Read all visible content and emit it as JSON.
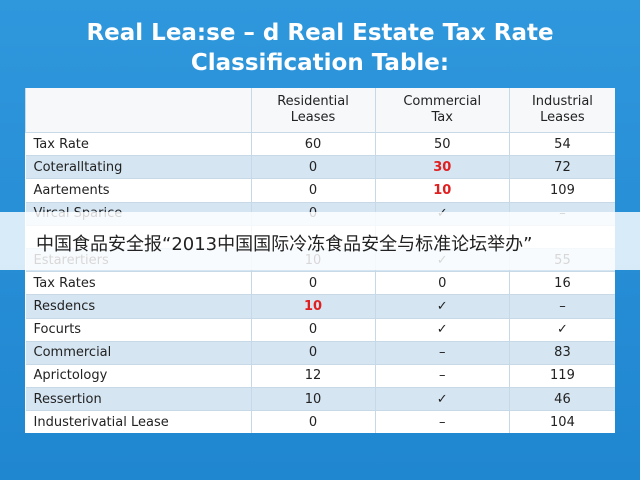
{
  "title": {
    "line1": "Real Lea:se – d Real Estate Tax Rate",
    "line2": "Classification Table:"
  },
  "table": {
    "header": [
      "Residential\nLeases",
      "Commercial\nTax",
      "Industrial\nLeases"
    ],
    "rows": [
      [
        "Tax Rate",
        "60",
        "50",
        "54"
      ],
      [
        "Coteralltating",
        "0",
        "30",
        "72"
      ],
      [
        "Aartements",
        "0",
        "10",
        "109"
      ],
      [
        "Vircal Sparice",
        "0",
        "✓",
        "–"
      ],
      [
        "Estarertiers",
        "10",
        "✓",
        "55"
      ],
      [
        "Tax Rates",
        "0",
        "0",
        "16"
      ],
      [
        "Resdencs",
        "10",
        "✓",
        "–"
      ],
      [
        "Focurts",
        "0",
        "✓",
        "✓"
      ],
      [
        "Commercial",
        "0",
        "–",
        "83"
      ],
      [
        "Aprictology",
        "12",
        "–",
        "119"
      ],
      [
        "Ressertion",
        "10",
        "✓",
        "46"
      ],
      [
        "Industerivatial Lease",
        "0",
        "–",
        "104"
      ]
    ]
  },
  "banner": "中国食品安全报“2013中国国际冷冻食品安全与标准论坛举办”"
}
